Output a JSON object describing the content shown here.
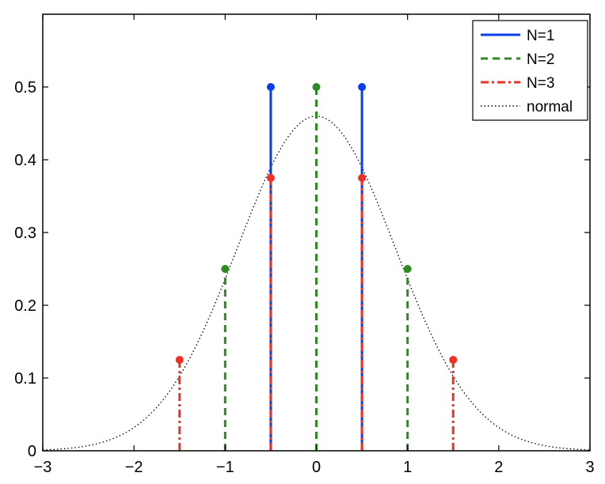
{
  "chart_data": {
    "type": "stem",
    "title": "",
    "xlabel": "",
    "ylabel": "",
    "xlim": [
      -3,
      3
    ],
    "ylim": [
      0,
      0.6
    ],
    "grid": false,
    "legend_position": "top-right",
    "x_ticks": [
      -3,
      -2,
      -1,
      0,
      1,
      2,
      3
    ],
    "x_tick_labels": [
      "−3",
      "−2",
      "−1",
      "0",
      "1",
      "2",
      "3"
    ],
    "y_ticks": [
      0,
      0.1,
      0.2,
      0.3,
      0.4,
      0.5
    ],
    "y_tick_labels": [
      "0",
      "0.1",
      "0.2",
      "0.3",
      "0.4",
      "0.5"
    ],
    "series": [
      {
        "name": "N=1",
        "style": "solid",
        "color": "#0a3cf0",
        "points": [
          {
            "x": -0.5,
            "y": 0.5
          },
          {
            "x": 0.5,
            "y": 0.5
          }
        ]
      },
      {
        "name": "N=2",
        "style": "dashed",
        "color": "#2e8b22",
        "points": [
          {
            "x": -1,
            "y": 0.25
          },
          {
            "x": 0,
            "y": 0.5
          },
          {
            "x": 1,
            "y": 0.25
          }
        ]
      },
      {
        "name": "N=3",
        "style": "dashdot",
        "color": "#f03024",
        "points": [
          {
            "x": -1.5,
            "y": 0.125
          },
          {
            "x": -0.5,
            "y": 0.375
          },
          {
            "x": 0.5,
            "y": 0.375
          },
          {
            "x": 1.5,
            "y": 0.125
          }
        ]
      },
      {
        "name": "normal",
        "style": "dotted",
        "color": "#000000",
        "curve": {
          "kind": "normal-density",
          "mean": 0,
          "sd": 0.866,
          "peak": 0.46
        }
      }
    ]
  }
}
